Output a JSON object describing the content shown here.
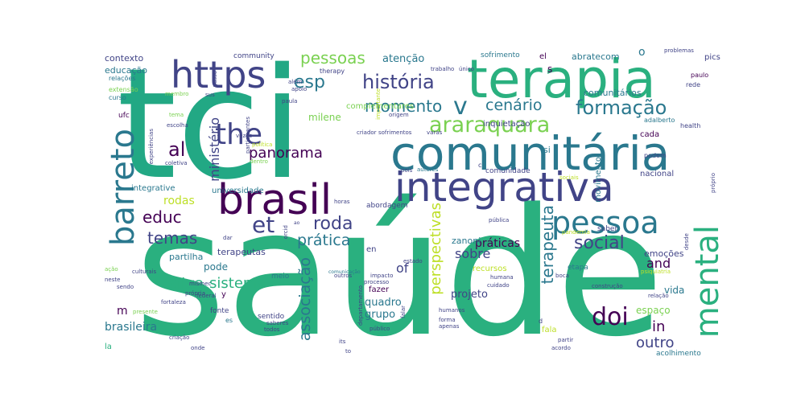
{
  "palette": {
    "background": "#ffffff",
    "dark_purple": "#440154",
    "indigo": "#414487",
    "blue": "#2a788e",
    "teal": "#22a884",
    "green": "#2ab07f",
    "lime": "#7ad151",
    "yellow": "#bddf26"
  },
  "words": {
    "saude": "saúde",
    "tci": "tci",
    "terapia": "terapia",
    "comunitaria": "comunitária",
    "integrativa": "integrativa",
    "brasil": "brasil",
    "https": "https",
    "mental": "mental",
    "pessoa": "pessoa",
    "barreto": "barreto",
    "araraquara": "araraquara",
    "the": "the",
    "historia": "história",
    "formacao": "formação",
    "v": "v",
    "et": "et",
    "social": "social",
    "doi": "doi",
    "cenario": "cenário",
    "momento": "momento",
    "esp": "esp",
    "pessoas": "pessoas",
    "panorama": "panorama",
    "temas": "temas",
    "educ": "educ",
    "al": "al",
    "roda": "roda",
    "pratica": "prática",
    "sistema": "sistema",
    "silva": "silva",
    "perspectivas": "perspectivas",
    "terapeuta": "terapeuta",
    "associacao": "associação",
    "outro": "outro",
    "in": "in",
    "and": "and",
    "of": "of",
    "rodas": "rodas",
    "ministerio": "ministério",
    "brasileira": "brasileira",
    "m": "m",
    "praticas": "práticas",
    "sobre": "sobre",
    "projeto": "projeto",
    "quadro": "quadro",
    "grupo": "grupo",
    "espaco": "espaço",
    "vida": "vida",
    "emocoes": "emoções",
    "contexto": "contexto",
    "educacao": "educação",
    "atencao": "atenção",
    "comunitarios": "comunitários",
    "abratecom": "abratecom",
    "milene": "milene",
    "zanoni": "zanoni",
    "partilha": "partilha",
    "terapeutas": "terapeutas",
    "pode": "pode",
    "universidade": "universidade",
    "integrative": "integrative",
    "community": "community",
    "el": "el",
    "pics": "pics",
    "cada": "cada",
    "movimento": "movimento",
    "nacional": "nacional",
    "complementares": "complementares",
    "inquietacao": "inquietação",
    "recursos": "recursos",
    "fala": "fala",
    "sentido": "sentido",
    "fonte": "fonte",
    "meio": "meio",
    "sofrimento": "sofrimento",
    "ufc": "ufc",
    "si": "si",
    "en": "en",
    "etapa": "etapa",
    "saber": "saber",
    "comunidade": "comunidade",
    "fazer": "fazer",
    "abordagem": "abordagem",
    "acolhimento": "acolhimento",
    "la": "la",
    "y": "y",
    "relacoes": "relações",
    "extensao": "extensão",
    "curso": "curso",
    "paulo": "paulo",
    "rede": "rede",
    "health": "health",
    "adalberto": "adalberto",
    "podem": "podem",
    "therapy": "therapy",
    "trabalho": "trabalho",
    "unico": "único",
    "alem": "além",
    "apoio": "apoio",
    "paula": "paula",
    "criador": "criador",
    "sofrimentos": "sofrimentos",
    "varas": "varas",
    "origem": "origem",
    "sus": "sus",
    "mismec": "mismec",
    "vezes": "vezes",
    "politica": "política",
    "coletiva": "coletiva",
    "escolha": "escolha",
    "experiencias": "experiências",
    "falar": "falar",
    "estado": "estado",
    "dar": "dar",
    "federal": "federal",
    "fortaleza": "fortaleza",
    "culturais": "culturais",
    "neste": "neste",
    "sendo": "sendo",
    "acao": "ação",
    "presente": "presente",
    "criacao": "criação",
    "onde": "onde",
    "saberes": "saberes",
    "todos": "todos",
    "its": "its",
    "to": "to",
    "publico": "público",
    "forma": "forma",
    "humanos": "humanos",
    "apenas": "apenas",
    "humana": "humana",
    "cuidado": "cuidado",
    "construcao": "construção",
    "psiquiatria": "psiquiatria",
    "relacao": "relação",
    "partir": "partir",
    "acordo": "acordo",
    "impacto": "impacto",
    "processo": "processo",
    "outros": "outros",
    "comunicacao": "comunicação",
    "departamento": "departamento",
    "pandemia": "pandemia",
    "boca": "boca",
    "publica": "pública",
    "horas": "horas",
    "pois": "pois",
    "autores": "autores",
    "sociais": "sociais",
    "desde": "desde",
    "proprio": "próprio",
    "problemas": "problemas",
    "tema": "tema",
    "membro": "membro",
    "propria": "própria",
    "participantes": "participantes",
    "passo": "passo",
    "dentro": "dentro",
    "importante": "importante",
    "ao": "ao",
    "o": "o",
    "c": "c",
    "d": "d",
    "s": "s",
    "es": "es",
    "orcid": "orcid"
  }
}
